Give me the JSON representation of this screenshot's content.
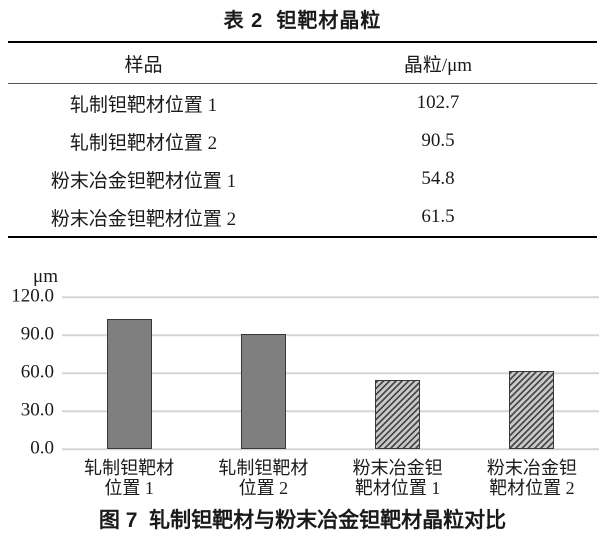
{
  "table": {
    "title": "表 2  钽靶材晶粒",
    "columns": [
      "样品",
      "晶粒/μm"
    ],
    "rows": [
      [
        "轧制钽靶材位置 1",
        "102.7"
      ],
      [
        "轧制钽靶材位置 2",
        "90.5"
      ],
      [
        "粉末冶金钽靶材位置 1",
        "54.8"
      ],
      [
        "粉末冶金钽靶材位置 2",
        "61.5"
      ]
    ]
  },
  "chart_data": {
    "type": "bar",
    "title": "",
    "xlabel": "",
    "ylabel": "μm",
    "categories": [
      "轧制钽靶材\n位置 1",
      "轧制钽靶材\n位置 2",
      "粉末冶金钽\n靶材位置 1",
      "粉末冶金钽\n靶材位置 2"
    ],
    "values": [
      102.7,
      90.5,
      54.8,
      61.5
    ],
    "ylim": [
      0,
      120
    ],
    "ytick_step": 30,
    "ytick_labels": [
      "120.0",
      "90.0",
      "60.0",
      "30.0",
      "0.0"
    ],
    "grid": true,
    "legend_position": "none",
    "bar_fill_styles": [
      "solid",
      "solid",
      "hatch",
      "hatch"
    ],
    "colors": {
      "bar_solid": "#7f7f7f",
      "bar_border": "#383838",
      "hatch_line": "#4a4a4a",
      "hatch_bg": "#c9c9c9",
      "gridline": "#d5d5d5",
      "text": "#1a1a1a",
      "background": "#ffffff"
    }
  },
  "figure": {
    "caption": "图 7  轧制钽靶材与粉末冶金钽靶材晶粒对比"
  }
}
